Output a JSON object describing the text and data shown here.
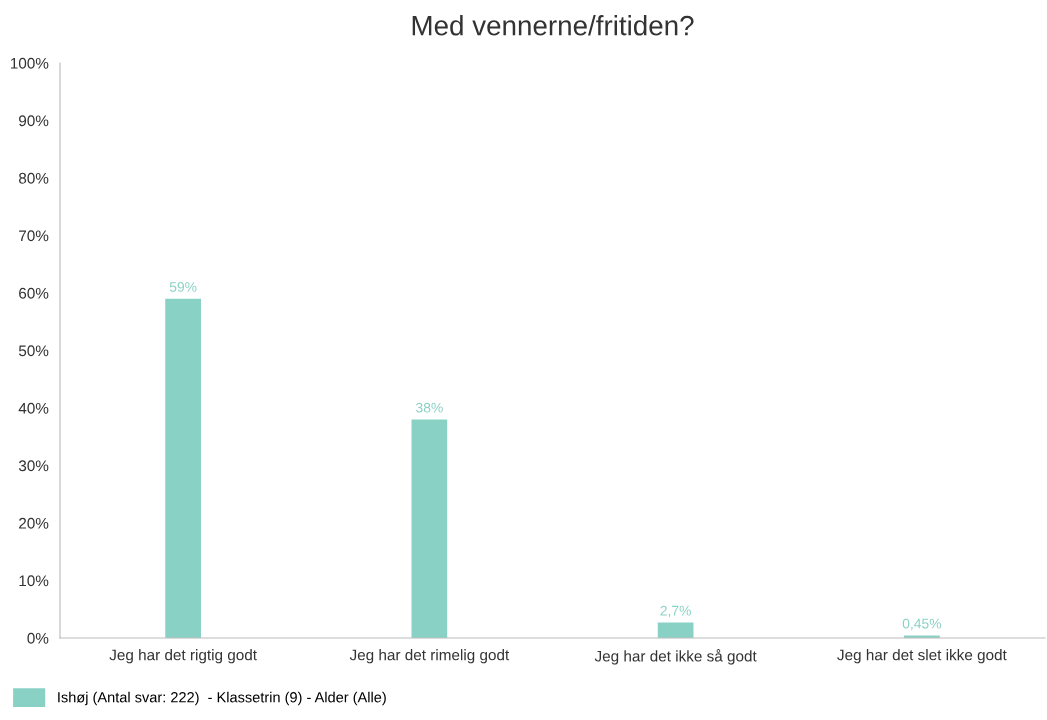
{
  "chart_data": {
    "type": "bar",
    "title": "Med vennerne/fritiden?",
    "categories": [
      "Jeg har det rigtig godt",
      "Jeg har det rimelig godt",
      "Jeg har det ikke så godt",
      "Jeg har det slet ikke godt"
    ],
    "series": [
      {
        "name": "Ishøj (Antal svar: 222)  - Klassetrin (9) - Alder (Alle)",
        "color": "#88d1c4",
        "values": [
          59,
          38,
          2.7,
          0.45
        ],
        "value_labels": [
          "59%",
          "38%",
          "2,7%",
          "0,45%"
        ]
      }
    ],
    "ylim": [
      0,
      100
    ],
    "yticks": [
      {
        "value": 0,
        "label": "0%"
      },
      {
        "value": 10,
        "label": "10%"
      },
      {
        "value": 20,
        "label": "20%"
      },
      {
        "value": 30,
        "label": "30%"
      },
      {
        "value": 40,
        "label": "40%"
      },
      {
        "value": 50,
        "label": "50%"
      },
      {
        "value": 60,
        "label": "60%"
      },
      {
        "value": 70,
        "label": "70%"
      },
      {
        "value": 80,
        "label": "80%"
      },
      {
        "value": 90,
        "label": "90%"
      },
      {
        "value": 100,
        "label": "100%"
      }
    ],
    "grid": false,
    "legend": "bottom left"
  }
}
